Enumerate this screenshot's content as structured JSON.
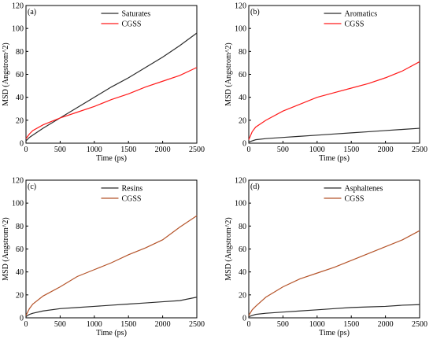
{
  "colors": {
    "dark": "#2b2b2b",
    "red": "#ff1a1a",
    "brown": "#b5542a"
  },
  "chart_data": [
    {
      "type": "line",
      "panel_label": "(a)",
      "xlabel": "Time (ps)",
      "ylabel": "MSD (Angstrom^2)",
      "xlim": [
        0,
        2500
      ],
      "ylim": [
        0,
        120
      ],
      "xticks": [
        "0",
        "500",
        "1000",
        "1500",
        "2000",
        "2500"
      ],
      "yticks": [
        "0",
        "20",
        "40",
        "60",
        "80",
        "100",
        "120"
      ],
      "legend_position": "top-center",
      "x": [
        0,
        50,
        100,
        250,
        500,
        750,
        1000,
        1250,
        1500,
        1750,
        2000,
        2250,
        2500
      ],
      "series": [
        {
          "name": "Saturates",
          "color": "#2b2b2b",
          "values": [
            2,
            5,
            7,
            13,
            22,
            31,
            40,
            49,
            57,
            66,
            75,
            85,
            96
          ]
        },
        {
          "name": "CGSS",
          "color": "#ff1a1a",
          "values": [
            4,
            8,
            11,
            16,
            22,
            27,
            32,
            38,
            43,
            49,
            54,
            59,
            66
          ]
        }
      ]
    },
    {
      "type": "line",
      "panel_label": "(b)",
      "xlabel": "Time (ps)",
      "ylabel": "MSD (Angstrom^2)",
      "xlim": [
        0,
        2500
      ],
      "ylim": [
        0,
        120
      ],
      "xticks": [
        "0",
        "500",
        "1000",
        "1500",
        "2000",
        "2500"
      ],
      "yticks": [
        "0",
        "20",
        "40",
        "60",
        "80",
        "100",
        "120"
      ],
      "legend_position": "top-center",
      "x": [
        0,
        50,
        100,
        250,
        500,
        750,
        1000,
        1250,
        1500,
        1750,
        2000,
        2250,
        2500
      ],
      "series": [
        {
          "name": "Aromatics",
          "color": "#2b2b2b",
          "values": [
            1,
            2,
            3,
            4,
            5,
            6,
            7,
            8,
            9,
            10,
            11,
            12,
            13
          ]
        },
        {
          "name": "CGSS",
          "color": "#ff1a1a",
          "values": [
            3,
            10,
            14,
            20,
            28,
            34,
            40,
            44,
            48,
            52,
            57,
            63,
            71
          ]
        }
      ]
    },
    {
      "type": "line",
      "panel_label": "(c)",
      "xlabel": "Time (ps)",
      "ylabel": "MSD (Angstrom^2)",
      "xlim": [
        0,
        2500
      ],
      "ylim": [
        0,
        120
      ],
      "xticks": [
        "0",
        "500",
        "1000",
        "1500",
        "2000",
        "2500"
      ],
      "yticks": [
        "0",
        "20",
        "40",
        "60",
        "80",
        "100",
        "120"
      ],
      "legend_position": "top-center",
      "x": [
        0,
        50,
        100,
        250,
        500,
        750,
        1000,
        1250,
        1500,
        1750,
        2000,
        2250,
        2500
      ],
      "series": [
        {
          "name": "Resins",
          "color": "#2b2b2b",
          "values": [
            1,
            3,
            4,
            6,
            8,
            9,
            10,
            11,
            12,
            13,
            14,
            15,
            18
          ]
        },
        {
          "name": "CGSS",
          "color": "#b5542a",
          "values": [
            2,
            8,
            12,
            19,
            27,
            36,
            42,
            48,
            55,
            61,
            68,
            79,
            89
          ]
        }
      ]
    },
    {
      "type": "line",
      "panel_label": "(d)",
      "xlabel": "Time (ps)",
      "ylabel": "MSD (Angstrom^2)",
      "xlim": [
        0,
        2500
      ],
      "ylim": [
        0,
        120
      ],
      "xticks": [
        "0",
        "500",
        "1000",
        "1500",
        "2000",
        "2500"
      ],
      "yticks": [
        "0",
        "20",
        "40",
        "60",
        "80",
        "100",
        "120"
      ],
      "legend_position": "top-center",
      "x": [
        0,
        50,
        100,
        250,
        500,
        750,
        1000,
        1250,
        1500,
        1750,
        2000,
        2250,
        2500
      ],
      "series": [
        {
          "name": "Asphaltenes",
          "color": "#2b2b2b",
          "values": [
            1,
            2,
            3,
            4,
            5,
            6,
            7,
            8,
            9,
            9.5,
            10,
            11,
            11.5
          ]
        },
        {
          "name": "CGSS",
          "color": "#b5542a",
          "values": [
            2,
            7,
            10,
            18,
            27,
            34,
            39,
            44,
            50,
            56,
            62,
            68,
            76
          ]
        }
      ]
    }
  ]
}
